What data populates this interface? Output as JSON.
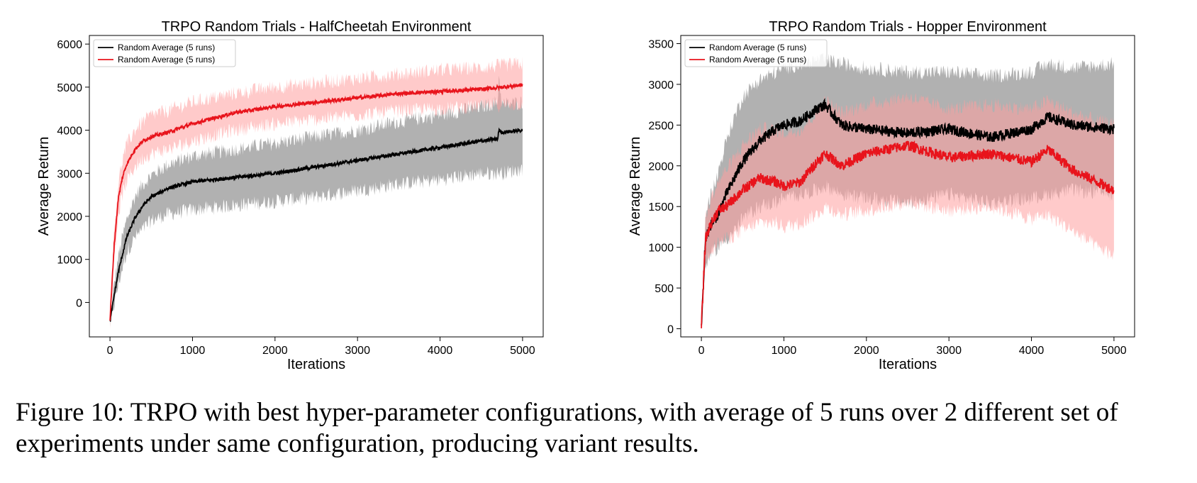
{
  "caption": "Figure 10: TRPO with best hyper-parameter configurations, with average of 5 runs over 2 different set of experiments under same configuration, producing variant results.",
  "colors": {
    "black_series": "#000000",
    "red_series": "#e8141c",
    "black_band": "#9e9e9e",
    "red_band": "#ff9e9e"
  },
  "chart_data": [
    {
      "type": "line",
      "title": "TRPO Random Trials - HalfCheetah Environment",
      "xlabel": "Iterations",
      "ylabel": "Average Return",
      "xlim": [
        -250,
        5250
      ],
      "ylim": [
        -800,
        6200
      ],
      "xticks": [
        0,
        1000,
        2000,
        3000,
        4000,
        5000
      ],
      "yticks": [
        0,
        1000,
        2000,
        3000,
        4000,
        5000,
        6000
      ],
      "legend_position": "top-left",
      "grid": false,
      "series": [
        {
          "name": "Random Average (5 runs)",
          "color": "black",
          "x": [
            0,
            50,
            100,
            150,
            200,
            300,
            400,
            500,
            700,
            1000,
            1500,
            2000,
            2500,
            3000,
            3500,
            4000,
            4500,
            4700,
            4710,
            4750,
            5000
          ],
          "y": [
            -450,
            150,
            700,
            1100,
            1500,
            1950,
            2250,
            2450,
            2650,
            2800,
            2900,
            3000,
            3150,
            3300,
            3450,
            3600,
            3750,
            3800,
            4000,
            3950,
            4000
          ],
          "band_low": [
            -500,
            -50,
            400,
            800,
            1150,
            1500,
            1700,
            1900,
            2050,
            2150,
            2250,
            2350,
            2450,
            2600,
            2750,
            2850,
            3000,
            3000,
            3050,
            3000,
            3100
          ],
          "band_high": [
            -400,
            400,
            1050,
            1500,
            1900,
            2450,
            2750,
            2950,
            3200,
            3400,
            3550,
            3700,
            3850,
            4000,
            4200,
            4350,
            4550,
            4650,
            5300,
            4600,
            4650
          ]
        },
        {
          "name": "Random Average (5 runs)",
          "color": "red",
          "x": [
            0,
            50,
            100,
            150,
            200,
            300,
            400,
            500,
            700,
            1000,
            1500,
            2000,
            2500,
            3000,
            3500,
            4000,
            4500,
            5000
          ],
          "y": [
            -400,
            1300,
            2400,
            2900,
            3200,
            3550,
            3750,
            3850,
            3950,
            4150,
            4400,
            4550,
            4650,
            4750,
            4850,
            4900,
            4950,
            5050
          ],
          "band_low": [
            -450,
            1000,
            2050,
            2500,
            2800,
            3150,
            3350,
            3450,
            3550,
            3750,
            4000,
            4150,
            4250,
            4350,
            4450,
            4500,
            4550,
            4600
          ],
          "band_high": [
            -350,
            1650,
            2750,
            3300,
            3650,
            4000,
            4200,
            4350,
            4450,
            4650,
            4850,
            5000,
            5100,
            5200,
            5300,
            5400,
            5450,
            5550
          ]
        }
      ]
    },
    {
      "type": "line",
      "title": "TRPO Random Trials - Hopper Environment",
      "xlabel": "Iterations",
      "ylabel": "Average Return",
      "xlim": [
        -250,
        5250
      ],
      "ylim": [
        -100,
        3600
      ],
      "xticks": [
        0,
        1000,
        2000,
        3000,
        4000,
        5000
      ],
      "yticks": [
        0,
        500,
        1000,
        1500,
        2000,
        2500,
        3000,
        3500
      ],
      "legend_position": "top-left",
      "grid": false,
      "series": [
        {
          "name": "Random Average (5 runs)",
          "color": "black",
          "x": [
            0,
            50,
            100,
            200,
            300,
            400,
            500,
            700,
            900,
            1000,
            1200,
            1400,
            1500,
            1700,
            2000,
            2500,
            3000,
            3500,
            4000,
            4200,
            4500,
            5000
          ],
          "y": [
            30,
            1100,
            1250,
            1400,
            1650,
            1850,
            2050,
            2300,
            2450,
            2500,
            2550,
            2700,
            2750,
            2500,
            2450,
            2400,
            2450,
            2350,
            2450,
            2600,
            2500,
            2450
          ],
          "band_low": [
            20,
            800,
            900,
            1000,
            1100,
            1200,
            1350,
            1500,
            1550,
            1600,
            1650,
            1700,
            1750,
            1650,
            1600,
            1550,
            1650,
            1550,
            1600,
            1650,
            1700,
            1650
          ],
          "band_high": [
            40,
            1400,
            1600,
            1900,
            2300,
            2600,
            2850,
            3050,
            3150,
            3200,
            3250,
            3300,
            3300,
            3250,
            3200,
            3150,
            3150,
            3100,
            3150,
            3250,
            3200,
            3250
          ]
        },
        {
          "name": "Random Average (5 runs)",
          "color": "red",
          "x": [
            0,
            50,
            100,
            200,
            300,
            400,
            500,
            700,
            900,
            1000,
            1200,
            1400,
            1500,
            1700,
            2000,
            2500,
            3000,
            3500,
            4000,
            4200,
            4500,
            4800,
            5000
          ],
          "y": [
            30,
            1100,
            1250,
            1450,
            1500,
            1600,
            1700,
            1850,
            1800,
            1750,
            1800,
            2050,
            2150,
            2000,
            2150,
            2250,
            2100,
            2150,
            2050,
            2200,
            1950,
            1800,
            1700
          ],
          "band_low": [
            20,
            850,
            950,
            1050,
            1100,
            1150,
            1200,
            1300,
            1300,
            1250,
            1300,
            1400,
            1500,
            1400,
            1450,
            1550,
            1450,
            1500,
            1350,
            1400,
            1200,
            1000,
            900
          ],
          "band_high": [
            40,
            1350,
            1550,
            1800,
            1950,
            2100,
            2250,
            2450,
            2450,
            2400,
            2450,
            2650,
            2800,
            2650,
            2750,
            2850,
            2700,
            2750,
            2700,
            2800,
            2650,
            2550,
            2500
          ]
        }
      ]
    }
  ]
}
